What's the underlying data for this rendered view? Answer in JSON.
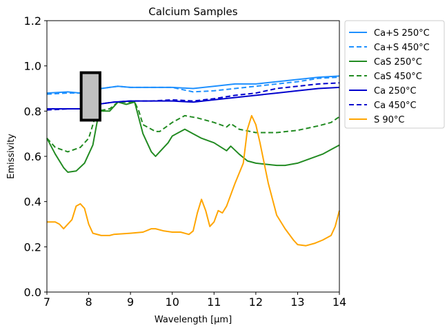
{
  "chart_data": {
    "type": "line",
    "title": "Calcium Samples",
    "xlabel": "Wavelength [µm]",
    "ylabel": "Emissivity",
    "xlim": [
      7,
      14
    ],
    "ylim": [
      0,
      1.2
    ],
    "xticks": [
      "7",
      "8",
      "9",
      "10",
      "11",
      "12",
      "13",
      "14"
    ],
    "yticks": [
      "0.0",
      "0.2",
      "0.4",
      "0.6",
      "0.8",
      "1.0",
      "1.2"
    ],
    "legend_position": "outside-top-right",
    "highlight_box": {
      "x": [
        7.82,
        8.27
      ],
      "y": [
        0.76,
        0.97
      ],
      "color": "#c0c0c0"
    },
    "series": [
      {
        "name": "Ca+S 250°C",
        "color": "#1e90ff",
        "dash": false,
        "x": [
          7,
          7.5,
          7.8,
          8.0,
          8.3,
          8.7,
          9,
          9.5,
          10,
          10.5,
          11,
          11.5,
          12,
          12.5,
          13,
          13.5,
          14
        ],
        "y": [
          0.88,
          0.885,
          0.88,
          0.91,
          0.9,
          0.91,
          0.905,
          0.905,
          0.905,
          0.9,
          0.91,
          0.92,
          0.92,
          0.93,
          0.94,
          0.95,
          0.955
        ]
      },
      {
        "name": "Ca+S 450°C",
        "color": "#1e90ff",
        "dash": true,
        "x": [
          7,
          7.5,
          7.8,
          8.0,
          8.3,
          8.7,
          9,
          9.5,
          10,
          10.5,
          11,
          11.5,
          12,
          12.5,
          13,
          13.5,
          14
        ],
        "y": [
          0.875,
          0.88,
          0.88,
          0.905,
          0.9,
          0.91,
          0.905,
          0.905,
          0.905,
          0.885,
          0.89,
          0.9,
          0.91,
          0.92,
          0.93,
          0.945,
          0.95
        ]
      },
      {
        "name": "CaS 250°C",
        "color": "#228b22",
        "dash": false,
        "x": [
          7,
          7.2,
          7.4,
          7.5,
          7.7,
          7.9,
          8.1,
          8.25,
          8.5,
          8.7,
          8.9,
          9.1,
          9.3,
          9.5,
          9.6,
          9.7,
          9.9,
          10,
          10.3,
          10.5,
          10.7,
          11,
          11.3,
          11.4,
          11.6,
          11.8,
          12,
          12.5,
          12.7,
          13,
          13.3,
          13.6,
          13.8,
          14
        ],
        "y": [
          0.68,
          0.61,
          0.55,
          0.53,
          0.535,
          0.57,
          0.65,
          0.8,
          0.8,
          0.84,
          0.83,
          0.84,
          0.7,
          0.62,
          0.6,
          0.62,
          0.66,
          0.69,
          0.72,
          0.7,
          0.68,
          0.66,
          0.625,
          0.645,
          0.61,
          0.58,
          0.57,
          0.56,
          0.56,
          0.57,
          0.59,
          0.61,
          0.63,
          0.65
        ]
      },
      {
        "name": "CaS 450°C",
        "color": "#228b22",
        "dash": true,
        "x": [
          7,
          7.2,
          7.5,
          7.8,
          8.0,
          8.2,
          8.5,
          8.7,
          9.1,
          9.2,
          9.3,
          9.6,
          9.7,
          10,
          10.3,
          10.6,
          11,
          11.3,
          11.4,
          11.6,
          12,
          12.5,
          13,
          13.5,
          13.8,
          14
        ],
        "y": [
          0.68,
          0.64,
          0.62,
          0.64,
          0.68,
          0.8,
          0.81,
          0.84,
          0.84,
          0.8,
          0.74,
          0.71,
          0.71,
          0.75,
          0.78,
          0.77,
          0.75,
          0.73,
          0.745,
          0.72,
          0.705,
          0.705,
          0.715,
          0.735,
          0.75,
          0.775
        ]
      },
      {
        "name": "Ca 250°C",
        "color": "#0000cd",
        "dash": false,
        "x": [
          7,
          7.5,
          7.9,
          8.0,
          8.2,
          8.6,
          9,
          9.5,
          10,
          10.5,
          11,
          11.5,
          12,
          12.5,
          13,
          13.5,
          14
        ],
        "y": [
          0.81,
          0.81,
          0.81,
          0.84,
          0.83,
          0.84,
          0.845,
          0.845,
          0.845,
          0.84,
          0.85,
          0.86,
          0.87,
          0.88,
          0.89,
          0.9,
          0.905
        ]
      },
      {
        "name": "Ca 450°C",
        "color": "#0000cd",
        "dash": true,
        "x": [
          7,
          7.5,
          7.9,
          8.0,
          8.2,
          8.6,
          9,
          9.5,
          10,
          10.5,
          11,
          11.5,
          12,
          12.5,
          13,
          13.5,
          14
        ],
        "y": [
          0.805,
          0.81,
          0.81,
          0.835,
          0.83,
          0.84,
          0.845,
          0.845,
          0.85,
          0.845,
          0.855,
          0.87,
          0.88,
          0.9,
          0.91,
          0.92,
          0.925
        ]
      },
      {
        "name": "S 90°C",
        "color": "#ffa500",
        "dash": false,
        "x": [
          7,
          7.2,
          7.3,
          7.4,
          7.6,
          7.7,
          7.8,
          7.9,
          8.0,
          8.1,
          8.3,
          8.5,
          8.6,
          9,
          9.3,
          9.5,
          9.6,
          9.8,
          10,
          10.2,
          10.4,
          10.5,
          10.6,
          10.7,
          10.8,
          10.9,
          11,
          11.1,
          11.2,
          11.3,
          11.5,
          11.7,
          11.8,
          11.9,
          12,
          12.1,
          12.3,
          12.5,
          12.7,
          12.9,
          13,
          13.2,
          13.4,
          13.6,
          13.8,
          13.9,
          14
        ],
        "y": [
          0.31,
          0.31,
          0.3,
          0.28,
          0.32,
          0.38,
          0.39,
          0.37,
          0.3,
          0.26,
          0.25,
          0.25,
          0.255,
          0.26,
          0.265,
          0.28,
          0.28,
          0.27,
          0.265,
          0.265,
          0.255,
          0.27,
          0.35,
          0.41,
          0.36,
          0.29,
          0.31,
          0.36,
          0.35,
          0.38,
          0.48,
          0.57,
          0.72,
          0.78,
          0.74,
          0.66,
          0.48,
          0.34,
          0.28,
          0.23,
          0.21,
          0.205,
          0.215,
          0.23,
          0.25,
          0.29,
          0.36
        ]
      }
    ]
  }
}
